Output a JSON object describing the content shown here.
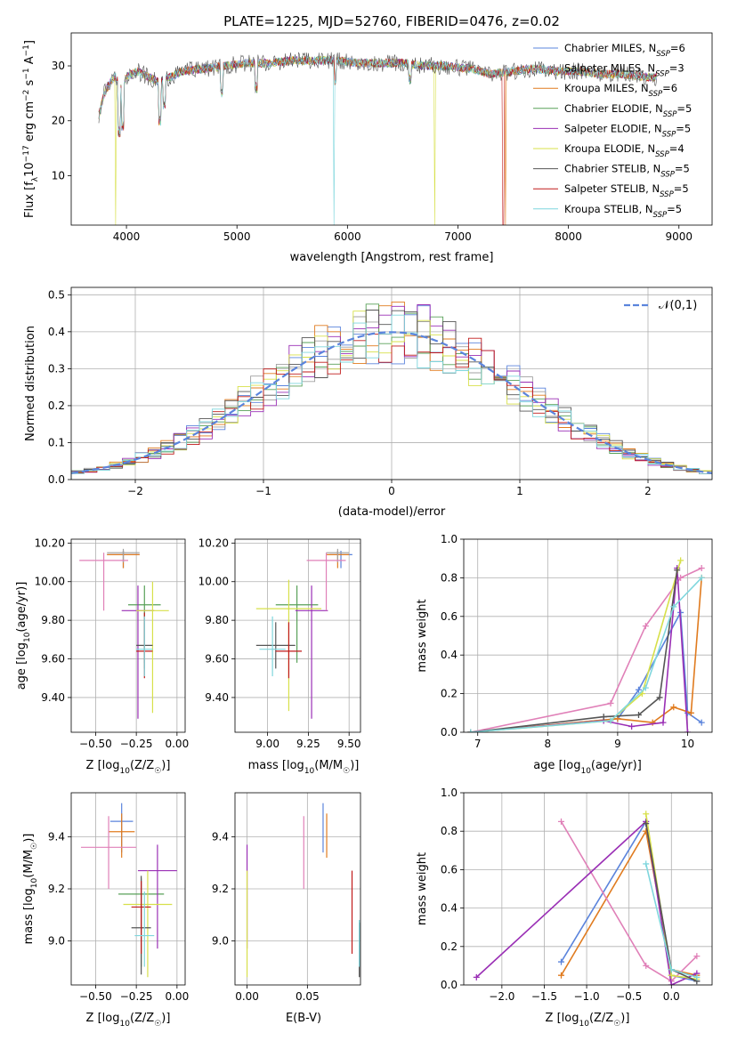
{
  "figure": {
    "title": "PLATE=1225, MJD=52760, FIBERID=0476, z=0.02"
  },
  "series": [
    {
      "name": "Chabrier MILES, N_SSP=6",
      "base": "Chabrier MILES, N",
      "sub": "SSP",
      "tail": "=6",
      "color": "#5b84dc"
    },
    {
      "name": "Salpeter MILES, N_SSP=3",
      "base": "Salpeter MILES, N",
      "sub": "SSP",
      "tail": "=3",
      "color": "#a0a0a0"
    },
    {
      "name": "Kroupa MILES, N_SSP=6",
      "base": "Kroupa MILES, N",
      "sub": "SSP",
      "tail": "=6",
      "color": "#e07b1f"
    },
    {
      "name": "Chabrier ELODIE, N_SSP=5",
      "base": "Chabrier ELODIE, N",
      "sub": "SSP",
      "tail": "=5",
      "color": "#58a058"
    },
    {
      "name": "Salpeter ELODIE, N_SSP=5",
      "base": "Salpeter ELODIE, N",
      "sub": "SSP",
      "tail": "=5",
      "color": "#9a2fb5"
    },
    {
      "name": "Kroupa ELODIE, N_SSP=4",
      "base": "Kroupa ELODIE, N",
      "sub": "SSP",
      "tail": "=4",
      "color": "#d7e04a"
    },
    {
      "name": "Chabrier STELIB, N_SSP=5",
      "base": "Chabrier STELIB, N",
      "sub": "SSP",
      "tail": "=5",
      "color": "#555555"
    },
    {
      "name": "Salpeter STELIB, N_SSP=5",
      "base": "Salpeter STELIB, N",
      "sub": "SSP",
      "tail": "=5",
      "color": "#c01a1a"
    },
    {
      "name": "Kroupa STELIB, N_SSP=5",
      "base": "Kroupa STELIB, N",
      "sub": "SSP",
      "tail": "=5",
      "color": "#7fd6dd"
    }
  ],
  "chart_data": [
    {
      "panel": "spectrum",
      "type": "line",
      "xlabel": "wavelength [Angstrom, rest frame]",
      "ylabel": "Flux [f_λ 10^-17 erg cm^-2 s^-1 A^-1]",
      "ylabel_parts": {
        "a": "Flux [f",
        "b": "λ",
        "c": "10",
        "d": "−17",
        "e": " erg cm",
        "f": "−2",
        "g": " s",
        "h": "−1",
        "i": " A",
        "j": "−1",
        "k": "]"
      },
      "xlim": [
        3500,
        9300
      ],
      "ylim": [
        1,
        36
      ],
      "xticks": [
        4000,
        5000,
        6000,
        7000,
        8000,
        9000
      ],
      "yticks": [
        10,
        20,
        30
      ],
      "legend_position": "top-right",
      "x": [
        3750,
        3800,
        3850,
        3900,
        3950,
        4000,
        4100,
        4200,
        4300,
        4400,
        4500,
        4700,
        4900,
        5100,
        5300,
        5500,
        5700,
        5900,
        6100,
        6300,
        6500,
        6700,
        6900,
        7100,
        7300,
        7500,
        7700,
        7900,
        8100,
        8300,
        8500,
        8700,
        8800
      ],
      "y": [
        21,
        25,
        27,
        28,
        26,
        28,
        29,
        28,
        27,
        28,
        29,
        29.5,
        30,
        30.5,
        30.5,
        31,
        31,
        31,
        30.5,
        30.5,
        30.5,
        30,
        30,
        29.5,
        28.5,
        29,
        29.5,
        29,
        29,
        28.5,
        28.5,
        28,
        28
      ]
    },
    {
      "panel": "residuals",
      "type": "histogram",
      "xlabel": "(data-model)/error",
      "ylabel": "Normed distribution",
      "xlim": [
        -2.5,
        2.5
      ],
      "ylim": [
        0,
        0.52
      ],
      "xticks": [
        -2,
        -1,
        0,
        1,
        2
      ],
      "yticks": [
        0.0,
        0.1,
        0.2,
        0.3,
        0.4,
        0.5
      ],
      "grid": true,
      "legend_position": "top-right",
      "reference": {
        "label": "𝒩(0,1)",
        "mean": 0,
        "sigma": 1,
        "color": "#5b84dc"
      },
      "bins": {
        "start": -2.5,
        "width": 0.1,
        "count": 50
      }
    },
    {
      "panel": "age-vs-Z",
      "type": "errorbar",
      "xlabel": "Z [log10(Z/Z☉)]",
      "xlabel_parts": {
        "a": "Z [log",
        "b": "10",
        "c": "(Z/Z",
        "d": "☉",
        "e": ")]"
      },
      "ylabel": "age [log10(age/yr)]",
      "ylabel_parts": {
        "a": "age  [log",
        "b": "10",
        "c": "(age/yr)]"
      },
      "xlim": [
        -0.65,
        0.05
      ],
      "ylim": [
        9.22,
        10.22
      ],
      "xticks": [
        -0.5,
        -0.25,
        0.0
      ],
      "xtick_labels": [
        "−0.50",
        "−0.25",
        "0.00"
      ],
      "yticks": [
        9.4,
        9.6,
        9.8,
        10.0,
        10.2
      ],
      "points": [
        {
          "s": 0,
          "x": -0.33,
          "y": 10.14,
          "xe": 0.1,
          "yl": 0.07,
          "yh": 0.02
        },
        {
          "s": 2,
          "x": -0.33,
          "y": 10.14,
          "xe": 0.1,
          "yl": 0.07,
          "yh": 0.02
        },
        {
          "s": 1,
          "x": -0.33,
          "y": 10.15,
          "xe": 0.1,
          "yl": 0.05,
          "yh": 0.02
        },
        {
          "s": 3,
          "x": -0.2,
          "y": 9.88,
          "xe": 0.1,
          "yl": 0.3,
          "yh": 0.1
        },
        {
          "s": 4,
          "x": -0.24,
          "y": 9.85,
          "xe": 0.1,
          "yl": 0.56,
          "yh": 0.13
        },
        {
          "s": 5,
          "x": -0.15,
          "y": 9.85,
          "xe": 0.1,
          "yl": 0.53,
          "yh": 0.15
        },
        {
          "s": 6,
          "x": -0.2,
          "y": 9.67,
          "xe": 0.05,
          "yl": 0.12,
          "yh": 0.12
        },
        {
          "s": 7,
          "x": -0.2,
          "y": 9.64,
          "xe": 0.05,
          "yl": 0.14,
          "yh": 0.2
        },
        {
          "s": 8,
          "x": -0.2,
          "y": 9.65,
          "xe": 0.05,
          "yl": 0.14,
          "yh": 0.17
        },
        {
          "s": 9,
          "x": -0.45,
          "y": 10.11,
          "xe": 0.15,
          "yl": 0.26,
          "yh": 0.04,
          "color": "#e080b8"
        }
      ]
    },
    {
      "panel": "age-vs-mass",
      "type": "errorbar",
      "xlabel": "mass [log10(M/M☉)]",
      "xlabel_parts": {
        "a": "mass [log",
        "b": "10",
        "c": "(M/M",
        "d": "☉",
        "e": ")]"
      },
      "xlim": [
        8.8,
        9.57
      ],
      "ylim": [
        9.22,
        10.22
      ],
      "xticks": [
        9.0,
        9.25,
        9.5
      ],
      "xtick_labels": [
        "9.00",
        "9.25",
        "9.50"
      ],
      "yticks": [
        9.4,
        9.6,
        9.8,
        10.0,
        10.2
      ],
      "points": [
        {
          "s": 0,
          "x": 9.45,
          "y": 10.14,
          "xe": 0.07,
          "yl": 0.07,
          "yh": 0.02
        },
        {
          "s": 2,
          "x": 9.43,
          "y": 10.14,
          "xe": 0.07,
          "yl": 0.07,
          "yh": 0.02
        },
        {
          "s": 1,
          "x": 9.43,
          "y": 10.15,
          "xe": 0.07,
          "yl": 0.05,
          "yh": 0.02
        },
        {
          "s": 3,
          "x": 9.18,
          "y": 9.88,
          "xe": 0.13,
          "yl": 0.3,
          "yh": 0.1
        },
        {
          "s": 4,
          "x": 9.27,
          "y": 9.85,
          "xe": 0.1,
          "yl": 0.56,
          "yh": 0.13
        },
        {
          "s": 5,
          "x": 9.13,
          "y": 9.86,
          "xe": 0.2,
          "yl": 0.53,
          "yh": 0.15
        },
        {
          "s": 6,
          "x": 9.05,
          "y": 9.67,
          "xe": 0.12,
          "yl": 0.12,
          "yh": 0.12
        },
        {
          "s": 7,
          "x": 9.13,
          "y": 9.64,
          "xe": 0.08,
          "yl": 0.14,
          "yh": 0.15
        },
        {
          "s": 8,
          "x": 9.03,
          "y": 9.65,
          "xe": 0.08,
          "yl": 0.14,
          "yh": 0.17
        },
        {
          "s": 9,
          "x": 9.36,
          "y": 10.11,
          "xe": 0.12,
          "yl": 0.26,
          "yh": 0.04,
          "color": "#e080b8"
        }
      ]
    },
    {
      "panel": "weight-vs-age",
      "type": "line",
      "xlabel": "age [log10(age/yr)]",
      "xlabel_parts": {
        "a": "age  [log",
        "b": "10",
        "c": "(age/yr)]"
      },
      "ylabel": "mass weight",
      "xlim": [
        6.8,
        10.35
      ],
      "ylim": [
        0,
        1.0
      ],
      "xticks": [
        7,
        8,
        9,
        10
      ],
      "yticks": [
        0.0,
        0.2,
        0.4,
        0.6,
        0.8,
        1.0
      ],
      "grid": true,
      "lines": [
        {
          "s": 0,
          "x": [
            6.9,
            9.0,
            9.3,
            9.9,
            10.0,
            10.2
          ],
          "y": [
            0.0,
            0.07,
            0.22,
            0.62,
            0.1,
            0.05
          ]
        },
        {
          "s": 2,
          "x": [
            6.9,
            9.0,
            9.5,
            9.8,
            10.05,
            10.2
          ],
          "y": [
            0.0,
            0.07,
            0.05,
            0.13,
            0.1,
            0.8
          ]
        },
        {
          "s": 9,
          "x": [
            6.9,
            8.9,
            9.4,
            9.9,
            10.2
          ],
          "y": [
            0.0,
            0.15,
            0.55,
            0.8,
            0.85
          ],
          "color": "#e080b8"
        },
        {
          "s": 4,
          "x": [
            6.9,
            8.8,
            9.2,
            9.65,
            9.85,
            10.0
          ],
          "y": [
            0.0,
            0.06,
            0.03,
            0.05,
            0.85,
            0.0
          ]
        },
        {
          "s": 5,
          "x": [
            6.9,
            8.9,
            9.35,
            9.9
          ],
          "y": [
            0.0,
            0.06,
            0.2,
            0.89
          ]
        },
        {
          "s": 6,
          "x": [
            6.9,
            8.8,
            9.3,
            9.6,
            9.85
          ],
          "y": [
            0.0,
            0.08,
            0.09,
            0.18,
            0.84
          ]
        },
        {
          "s": 8,
          "x": [
            6.9,
            8.9,
            9.4,
            9.8,
            10.2
          ],
          "y": [
            0.0,
            0.06,
            0.23,
            0.65,
            0.8
          ]
        }
      ]
    },
    {
      "panel": "mass-vs-Z",
      "type": "errorbar",
      "xlabel": "Z [log10(Z/Z☉)]",
      "xlabel_parts": {
        "a": "Z [log",
        "b": "10",
        "c": "(Z/Z",
        "d": "☉",
        "e": ")]"
      },
      "ylabel": "mass [log10(M/M☉)]",
      "ylabel_parts": {
        "a": "mass [log",
        "b": "10",
        "c": "(M/M",
        "d": "☉",
        "e": ")]"
      },
      "xlim": [
        -0.65,
        0.05
      ],
      "ylim": [
        8.83,
        9.57
      ],
      "xticks": [
        -0.5,
        -0.25,
        0.0
      ],
      "xtick_labels": [
        "−0.50",
        "−0.25",
        "0.00"
      ],
      "yticks": [
        9.0,
        9.2,
        9.4
      ],
      "points": [
        {
          "s": 0,
          "x": -0.34,
          "y": 9.46,
          "xe": 0.07,
          "yl": 0.12,
          "yh": 0.07
        },
        {
          "s": 2,
          "x": -0.34,
          "y": 9.42,
          "xe": 0.08,
          "yl": 0.1,
          "yh": 0.07
        },
        {
          "s": 3,
          "x": -0.22,
          "y": 9.18,
          "xe": 0.14,
          "yl": 0.28,
          "yh": 0.06
        },
        {
          "s": 4,
          "x": -0.12,
          "y": 9.27,
          "xe": 0.12,
          "yl": 0.3,
          "yh": 0.1
        },
        {
          "s": 5,
          "x": -0.18,
          "y": 9.14,
          "xe": 0.15,
          "yl": 0.28,
          "yh": 0.13
        },
        {
          "s": 6,
          "x": -0.22,
          "y": 9.05,
          "xe": 0.06,
          "yl": 0.18,
          "yh": 0.2
        },
        {
          "s": 7,
          "x": -0.22,
          "y": 9.13,
          "xe": 0.06,
          "yl": 0.18,
          "yh": 0.1
        },
        {
          "s": 8,
          "x": -0.2,
          "y": 9.02,
          "xe": 0.06,
          "yl": 0.12,
          "yh": 0.17
        },
        {
          "s": 9,
          "x": -0.42,
          "y": 9.36,
          "xe": 0.17,
          "yl": 0.16,
          "yh": 0.12,
          "color": "#e080b8"
        }
      ]
    },
    {
      "panel": "mass-vs-EBV",
      "type": "errorbar",
      "xlabel": "E(B-V)",
      "xlim": [
        -0.01,
        0.094
      ],
      "ylim": [
        8.83,
        9.57
      ],
      "xticks": [
        0.0,
        0.05
      ],
      "xtick_labels": [
        "0.00",
        "0.05"
      ],
      "yticks": [
        9.0,
        9.2,
        9.4
      ],
      "points": [
        {
          "s": 0,
          "x": 0.063,
          "y": 9.46,
          "xe": 0,
          "yl": 0.12,
          "yh": 0.07
        },
        {
          "s": 2,
          "x": 0.066,
          "y": 9.42,
          "xe": 0,
          "yl": 0.1,
          "yh": 0.07
        },
        {
          "s": 9,
          "x": 0.047,
          "y": 9.36,
          "xe": 0,
          "yl": 0.16,
          "yh": 0.12,
          "color": "#e080b8"
        },
        {
          "s": 4,
          "x": 0.0,
          "y": 9.27,
          "xe": 0,
          "yl": 0.3,
          "yh": 0.1
        },
        {
          "s": 5,
          "x": 0.0,
          "y": 9.14,
          "xe": 0,
          "yl": 0.28,
          "yh": 0.13
        },
        {
          "s": 7,
          "x": 0.087,
          "y": 9.13,
          "xe": 0,
          "yl": 0.18,
          "yh": 0.14
        },
        {
          "s": 6,
          "x": 0.093,
          "y": 8.97,
          "xe": 0,
          "yl": 0.11,
          "yh": 0.1
        },
        {
          "s": 8,
          "x": 0.093,
          "y": 9.0,
          "xe": 0,
          "yl": 0.1,
          "yh": 0.08
        }
      ]
    },
    {
      "panel": "weight-vs-Z",
      "type": "line",
      "xlabel": "Z [log10(Z/Z☉)]",
      "xlabel_parts": {
        "a": "Z [log",
        "b": "10",
        "c": "(Z/Z",
        "d": "☉",
        "e": ")]"
      },
      "ylabel": "mass weight",
      "xlim": [
        -2.45,
        0.48
      ],
      "ylim": [
        0,
        1.0
      ],
      "xticks": [
        -2.0,
        -1.5,
        -1.0,
        -0.5,
        0.0
      ],
      "xtick_labels": [
        "−2.0",
        "−1.5",
        "−1.0",
        "−0.5",
        "0.0"
      ],
      "yticks": [
        0.0,
        0.2,
        0.4,
        0.6,
        0.8,
        1.0
      ],
      "grid": true,
      "lines": [
        {
          "s": 0,
          "x": [
            -1.3,
            -0.3,
            0.0,
            0.3
          ],
          "y": [
            0.12,
            0.85,
            0.05,
            0.02
          ]
        },
        {
          "s": 2,
          "x": [
            -1.3,
            -0.3,
            0.0,
            0.3
          ],
          "y": [
            0.05,
            0.8,
            0.08,
            0.05
          ]
        },
        {
          "s": 9,
          "x": [
            -1.3,
            -0.3,
            0.0,
            0.3
          ],
          "y": [
            0.85,
            0.1,
            0.02,
            0.15
          ],
          "color": "#e080b8"
        },
        {
          "s": 4,
          "x": [
            -2.3,
            -0.3,
            0.0,
            0.3
          ],
          "y": [
            0.04,
            0.85,
            0.0,
            0.06
          ]
        },
        {
          "s": 5,
          "x": [
            -0.3,
            0.0,
            0.3
          ],
          "y": [
            0.89,
            0.05,
            0.03
          ]
        },
        {
          "s": 6,
          "x": [
            -0.3,
            0.0,
            0.3
          ],
          "y": [
            0.84,
            0.08,
            0.02
          ]
        },
        {
          "s": 8,
          "x": [
            -0.3,
            0.0,
            0.3
          ],
          "y": [
            0.63,
            0.08,
            0.04
          ]
        }
      ]
    }
  ]
}
